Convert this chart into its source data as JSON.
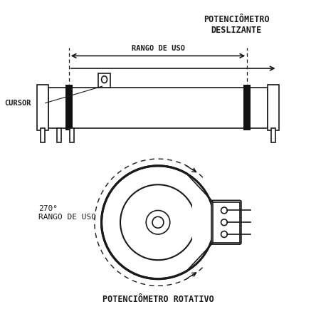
{
  "title_top": "POTENCIÔMETRO\nDESLIZANTE",
  "title_bottom": "POTENCIÔMETRO ROTATIVO",
  "label_rango": "RANGO DE USO",
  "label_cursor": "CURSOR",
  "label_270": "270°\nRANGO DE USO",
  "bg_color": "#ffffff",
  "line_color": "#1a1a1a",
  "fig_width": 4.44,
  "fig_height": 4.48,
  "dpi": 100
}
